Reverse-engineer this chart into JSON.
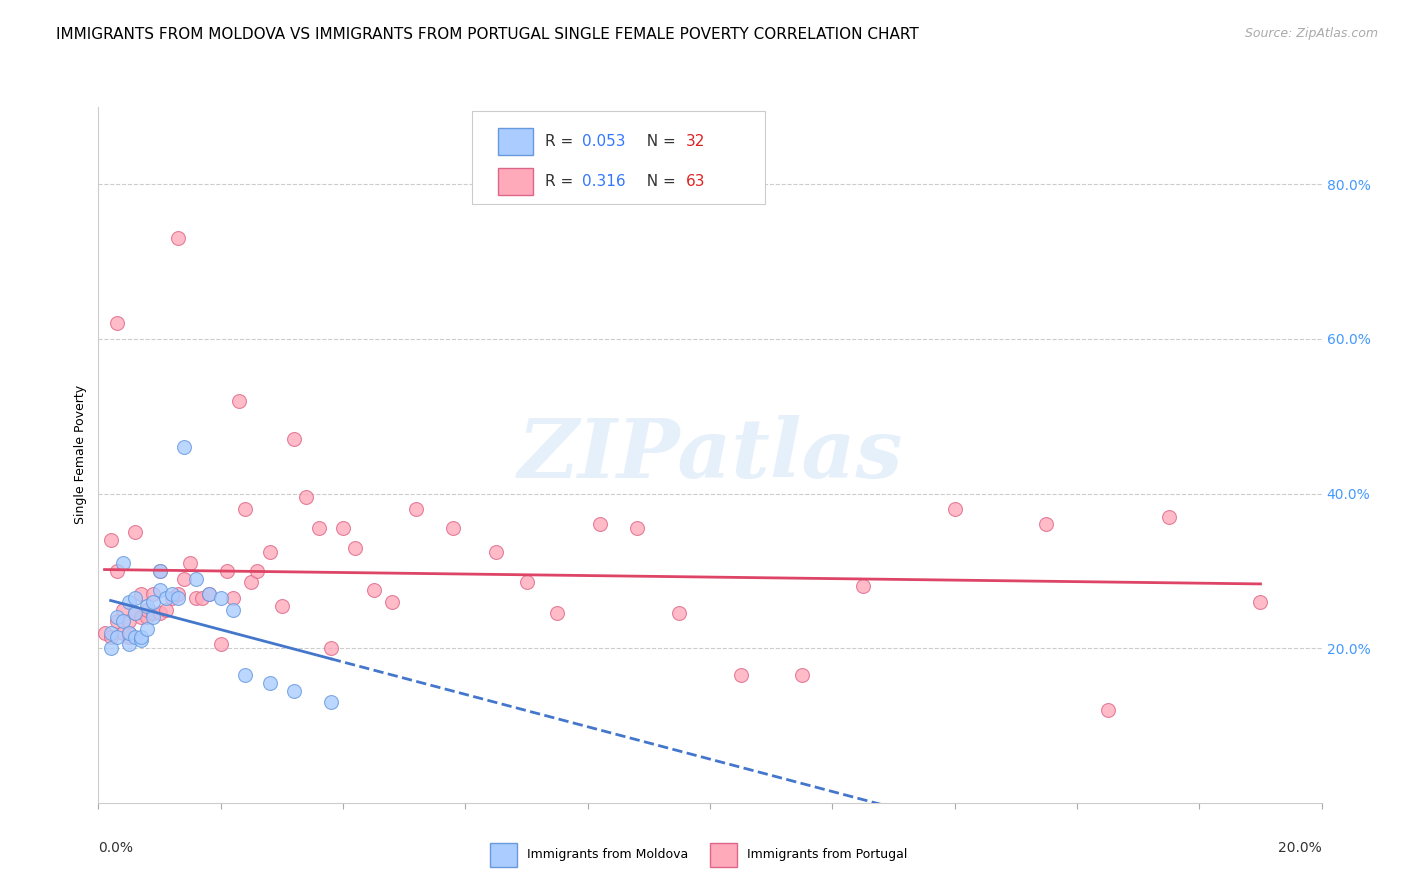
{
  "title": "IMMIGRANTS FROM MOLDOVA VS IMMIGRANTS FROM PORTUGAL SINGLE FEMALE POVERTY CORRELATION CHART",
  "source": "Source: ZipAtlas.com",
  "ylabel": "Single Female Poverty",
  "legend_moldova_r": "R = ",
  "legend_moldova_rval": "0.053",
  "legend_moldova_n": "  N = ",
  "legend_moldova_nval": "32",
  "legend_portugal_r": "R = ",
  "legend_portugal_rval": "0.316",
  "legend_portugal_n": "  N = ",
  "legend_portugal_nval": "63",
  "legend_moldova_label": "Immigrants from Moldova",
  "legend_portugal_label": "Immigrants from Portugal",
  "moldova_scatter_x": [
    0.2,
    0.2,
    0.3,
    0.3,
    0.4,
    0.4,
    0.5,
    0.5,
    0.5,
    0.6,
    0.6,
    0.6,
    0.7,
    0.7,
    0.8,
    0.8,
    0.9,
    0.9,
    1.0,
    1.0,
    1.1,
    1.2,
    1.3,
    1.4,
    1.6,
    1.8,
    2.0,
    2.2,
    2.4,
    2.8,
    3.2,
    3.8
  ],
  "moldova_scatter_y": [
    22.0,
    20.0,
    21.5,
    24.0,
    23.5,
    31.0,
    20.5,
    22.0,
    26.0,
    21.5,
    24.5,
    26.5,
    21.0,
    21.5,
    22.5,
    25.5,
    24.0,
    26.0,
    27.5,
    30.0,
    26.5,
    27.0,
    26.5,
    46.0,
    29.0,
    27.0,
    26.5,
    25.0,
    16.5,
    15.5,
    14.5,
    13.0
  ],
  "portugal_scatter_x": [
    0.1,
    0.2,
    0.2,
    0.3,
    0.3,
    0.3,
    0.4,
    0.4,
    0.5,
    0.5,
    0.5,
    0.6,
    0.6,
    0.7,
    0.7,
    0.8,
    0.8,
    0.9,
    0.9,
    1.0,
    1.0,
    1.1,
    1.2,
    1.3,
    1.3,
    1.4,
    1.5,
    1.6,
    1.7,
    1.8,
    2.0,
    2.1,
    2.2,
    2.3,
    2.4,
    2.5,
    2.6,
    2.8,
    3.0,
    3.2,
    3.4,
    3.6,
    3.8,
    4.0,
    4.2,
    4.5,
    4.8,
    5.2,
    5.8,
    6.5,
    7.0,
    7.5,
    8.2,
    8.8,
    9.5,
    10.5,
    11.5,
    12.5,
    14.0,
    15.5,
    16.5,
    17.5,
    19.0
  ],
  "portugal_scatter_y": [
    22.0,
    21.5,
    34.0,
    30.0,
    23.5,
    62.0,
    22.0,
    25.0,
    21.5,
    22.0,
    23.5,
    24.5,
    35.0,
    24.0,
    27.0,
    24.0,
    25.0,
    24.5,
    27.0,
    24.5,
    30.0,
    25.0,
    26.5,
    27.0,
    73.0,
    29.0,
    31.0,
    26.5,
    26.5,
    27.0,
    20.5,
    30.0,
    26.5,
    52.0,
    38.0,
    28.5,
    30.0,
    32.5,
    25.5,
    47.0,
    39.5,
    35.5,
    20.0,
    35.5,
    33.0,
    27.5,
    26.0,
    38.0,
    35.5,
    32.5,
    28.5,
    24.5,
    36.0,
    35.5,
    24.5,
    16.5,
    16.5,
    28.0,
    38.0,
    36.0,
    12.0,
    37.0,
    26.0
  ],
  "moldova_color": "#aaccff",
  "portugal_color": "#ffaabb",
  "moldova_edge_color": "#6699dd",
  "portugal_edge_color": "#dd6688",
  "moldova_line_color": "#4477cc",
  "portugal_line_color": "#dd4466",
  "background_color": "#ffffff",
  "grid_color": "#cccccc",
  "marker_size": 100,
  "xlim": [
    0.0,
    20.0
  ],
  "ylim": [
    0.0,
    90.0
  ],
  "ytick_vals": [
    20.0,
    40.0,
    60.0,
    80.0
  ],
  "title_fontsize": 11,
  "source_fontsize": 9,
  "axis_label_fontsize": 9,
  "tick_label_fontsize": 9
}
